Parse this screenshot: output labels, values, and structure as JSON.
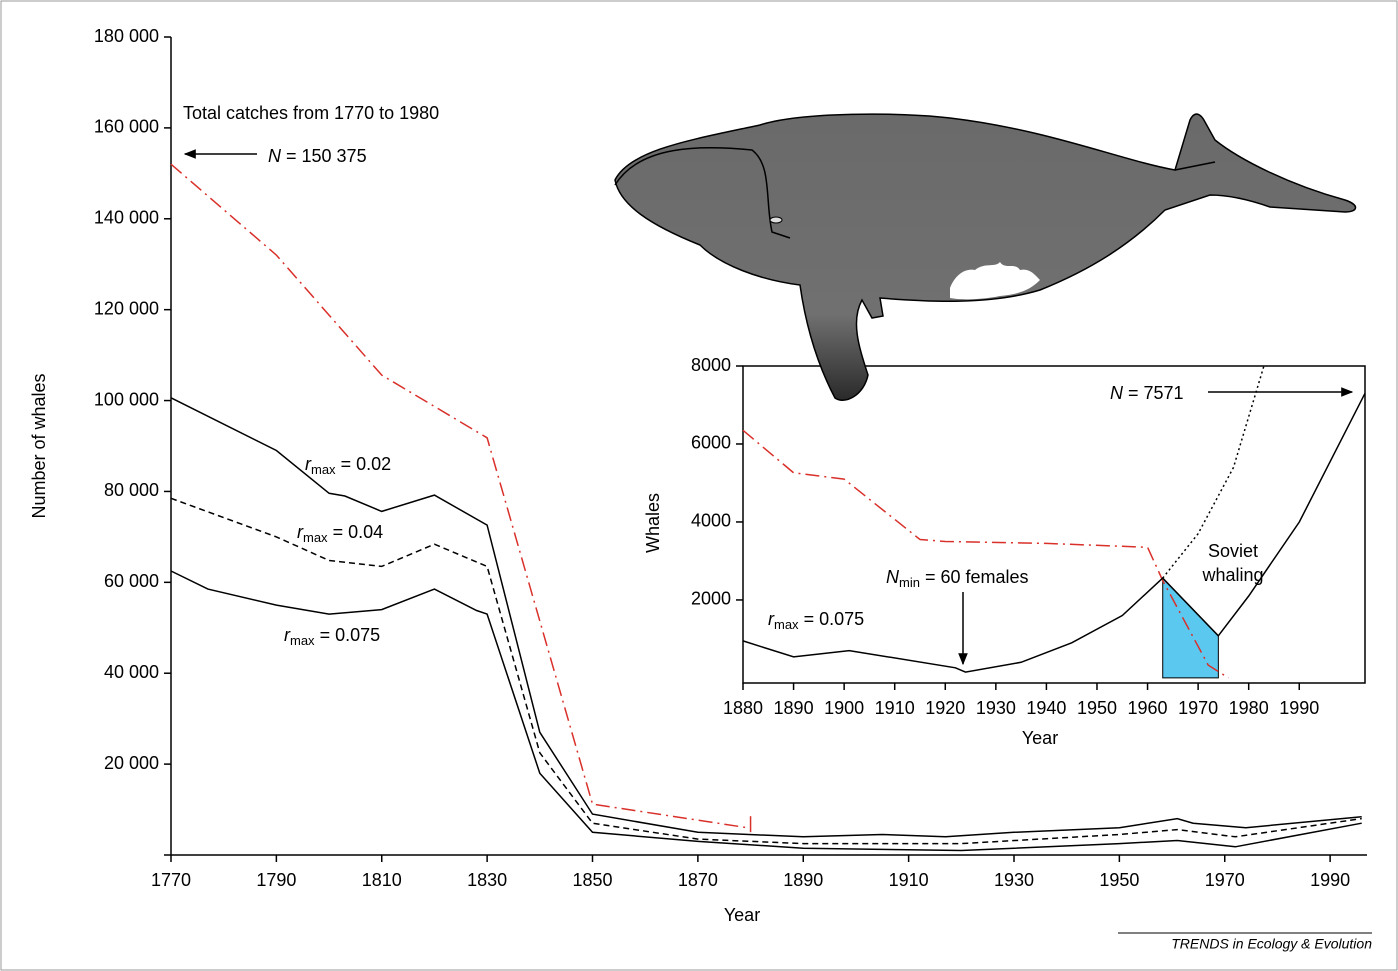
{
  "chart_data": [
    {
      "type": "line",
      "x_label": "Year",
      "y_label": "Number of whales",
      "xlim": [
        1770,
        1997
      ],
      "ylim": [
        0,
        180000
      ],
      "xticks": [
        1770,
        1790,
        1810,
        1830,
        1850,
        1870,
        1890,
        1910,
        1930,
        1950,
        1970,
        1990
      ],
      "yticks": [
        0,
        {
          "value": 20000,
          "label": "20 000"
        },
        {
          "value": 40000,
          "label": "40 000"
        },
        {
          "value": 60000,
          "label": "60 000"
        },
        {
          "value": 80000,
          "label": "80 000"
        },
        {
          "value": 100000,
          "label": "100 000"
        },
        {
          "value": 120000,
          "label": "120 000"
        },
        {
          "value": 140000,
          "label": "140 000"
        },
        {
          "value": 160000,
          "label": "160 000"
        },
        {
          "value": {
            "value": 180000
          },
          "label": "180 000"
        }
      ],
      "annotation": {
        "line1": "Total catches from 1770 to 1980",
        "symbol": "N",
        "text": "= 150 375"
      },
      "series": [
        {
          "color": "#d9302a",
          "style": "dashdot",
          "x": [
            1770,
            1790,
            1810,
            1830,
            1850,
            1880
          ],
          "values": [
            152000,
            132000,
            105600,
            91800,
            11200,
            5900
          ]
        },
        {
          "color": "#000000",
          "style": "solid",
          "label": {
            "symbol": "r",
            "sub": "max",
            "text": "= 0.02"
          },
          "x": [
            1770,
            1790,
            1800,
            1803,
            1810,
            1820,
            1830,
            1840,
            1850,
            1870,
            1890,
            1905,
            1917,
            1930,
            1950,
            1961,
            1964,
            1974,
            1996
          ],
          "values": [
            100600,
            89000,
            79600,
            79000,
            75600,
            79200,
            72600,
            27000,
            9000,
            5000,
            4000,
            4500,
            4000,
            5000,
            6000,
            8000,
            7000,
            6000,
            8400
          ]
        },
        {
          "color": "#000000",
          "style": "dashed",
          "label": {
            "symbol": "r",
            "sub": "max",
            "text": "= 0.04"
          },
          "x": [
            1770,
            1790,
            1800,
            1810,
            1820,
            1830,
            1840,
            1850,
            1870,
            1890,
            1920,
            1950,
            1961,
            1972,
            1996
          ],
          "values": [
            78500,
            70000,
            64800,
            63500,
            68400,
            63500,
            22500,
            7000,
            3500,
            2500,
            2500,
            4500,
            5600,
            4000,
            8000
          ]
        },
        {
          "color": "#000000",
          "style": "solid",
          "label": {
            "symbol": "r",
            "sub": "max",
            "text": "= 0.075"
          },
          "x": [
            1770,
            1777,
            1790,
            1800,
            1810,
            1820,
            1828,
            1830,
            1840,
            1850,
            1870,
            1890,
            1920,
            1950,
            1961,
            1972,
            1996
          ],
          "values": [
            62500,
            58500,
            55000,
            53000,
            54000,
            58500,
            53800,
            53000,
            18000,
            5000,
            3000,
            1500,
            1000,
            2500,
            3200,
            1800,
            7000
          ]
        }
      ]
    },
    {
      "type": "line",
      "x_label": "Year",
      "y_label": "Whales",
      "xlim": [
        1880,
        2003
      ],
      "ylim": [
        -130,
        8000
      ],
      "xticks": [
        1880,
        1890,
        1900,
        1910,
        1920,
        1930,
        1940,
        1950,
        1960,
        1970,
        1980,
        1990
      ],
      "yticks": [
        2000,
        4000,
        6000,
        8000
      ],
      "annotation_end": {
        "symbol": "N",
        "text": "= 7571"
      },
      "annotation_min": {
        "symbol": "N",
        "sub": "min",
        "text": "= 60 females"
      },
      "shade": {
        "label": [
          "Soviet",
          "whaling"
        ],
        "color": "#5bc8f0",
        "range": [
          1963,
          1974
        ]
      },
      "series": [
        {
          "color": "#d9302a",
          "style": "dashdot",
          "x": [
            1880,
            1890,
            1900,
            1915,
            1920,
            1940,
            1960,
            1963,
            1972,
            1976
          ],
          "values": [
            6350,
            5260,
            5100,
            3550,
            3500,
            3450,
            3350,
            2500,
            330,
            0
          ]
        },
        {
          "color": "#000000",
          "style": "solid",
          "label": {
            "symbol": "r",
            "sub": "max",
            "text": "= 0.075"
          },
          "x": [
            1880,
            1890,
            1901,
            1922,
            1924,
            1935,
            1945,
            1955,
            1963,
            1974,
            1980,
            1990,
            2003
          ],
          "values": [
            950,
            540,
            700,
            260,
            150,
            400,
            900,
            1600,
            2560,
            1080,
            2100,
            4000,
            7300
          ]
        },
        {
          "color": "#000000",
          "style": "dotted",
          "x": [
            1963,
            1970,
            1977,
            1983
          ],
          "values": [
            2560,
            3700,
            5400,
            8000
          ]
        }
      ]
    }
  ],
  "footer": "TRENDS in Ecology & Evolution"
}
